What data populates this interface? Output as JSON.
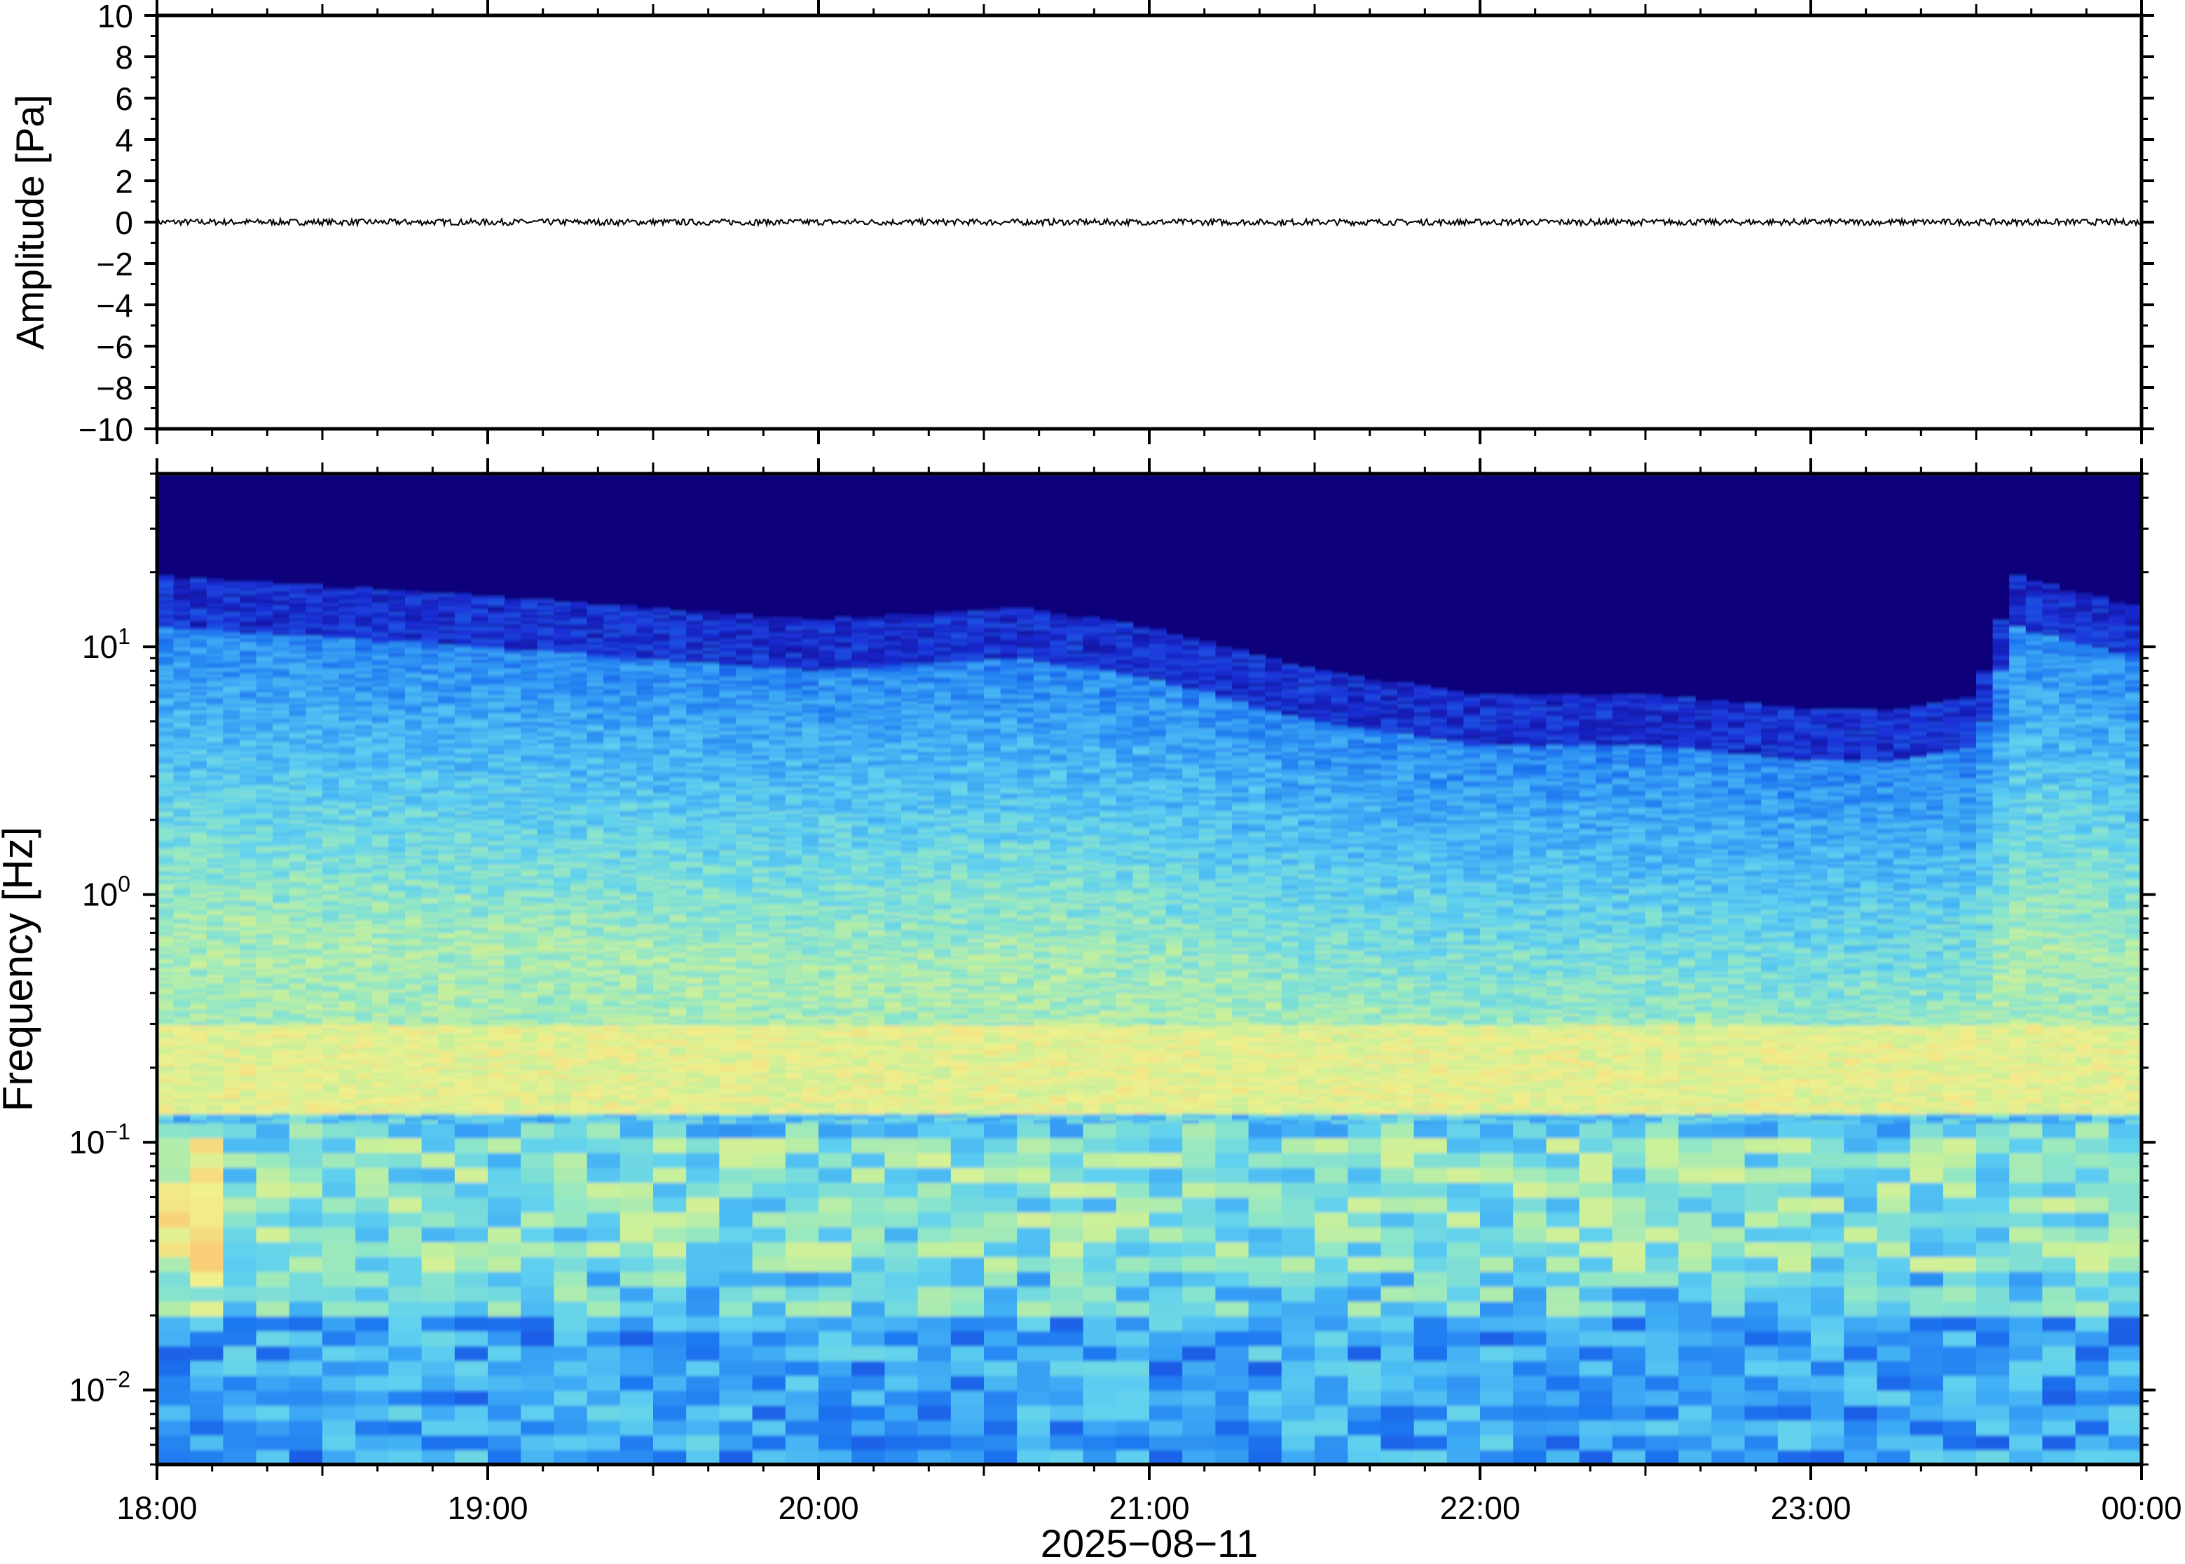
{
  "chart_data": [
    {
      "type": "line",
      "panel": "waveform",
      "ylabel": "Amplitude [Pa]",
      "ylim": [
        -10,
        10
      ],
      "yticks": [
        10,
        8,
        6,
        4,
        2,
        0,
        -2,
        -4,
        -6,
        -8,
        -10
      ],
      "ytick_labels": [
        "10",
        "8",
        "6",
        "4",
        "2",
        "0",
        "−2",
        "−4",
        "−6",
        "−8",
        "−10"
      ],
      "xlim_hours": [
        18,
        24
      ],
      "series": [
        {
          "values_hint": "near-zero noise trace",
          "mean": 0,
          "peak_abs": 0.15
        }
      ],
      "line_color": "#000000",
      "grid": false
    },
    {
      "type": "heatmap",
      "panel": "spectrogram",
      "ylabel": "Frequency [Hz]",
      "yscale": "log",
      "ylim": [
        0.005,
        50
      ],
      "yticks": [
        {
          "value": 10,
          "base": "10",
          "exp": "1"
        },
        {
          "value": 1,
          "base": "10",
          "exp": "0"
        },
        {
          "value": 0.1,
          "base": "10",
          "exp": "−1"
        },
        {
          "value": 0.01,
          "base": "10",
          "exp": "−2"
        }
      ],
      "xlabel": "2025−08−11",
      "xlim_hours": [
        18,
        24
      ],
      "xticks": [
        18,
        19,
        20,
        21,
        22,
        23,
        24
      ],
      "xtick_labels": [
        "18:00",
        "19:00",
        "20:00",
        "21:00",
        "22:00",
        "23:00",
        "00:00"
      ],
      "colormap": [
        "#0a007a",
        "#1a2ed6",
        "#1e78f0",
        "#3ca8f5",
        "#5fd0f0",
        "#8ee6c8",
        "#c8f09a",
        "#f0f08c",
        "#f8d078",
        "#f8a060"
      ],
      "high_freq_cutoff_hz_by_hour": [
        [
          18,
          12
        ],
        [
          19,
          10
        ],
        [
          20,
          8
        ],
        [
          20.6,
          9
        ],
        [
          21,
          7.5
        ],
        [
          21.5,
          5
        ],
        [
          22,
          4
        ],
        [
          22.5,
          4
        ],
        [
          23,
          3.5
        ],
        [
          23.3,
          3.5
        ],
        [
          23.5,
          4
        ],
        [
          23.62,
          12
        ],
        [
          24,
          9
        ]
      ],
      "energy_band_hz": [
        0.13,
        0.3
      ],
      "grid": false
    }
  ]
}
